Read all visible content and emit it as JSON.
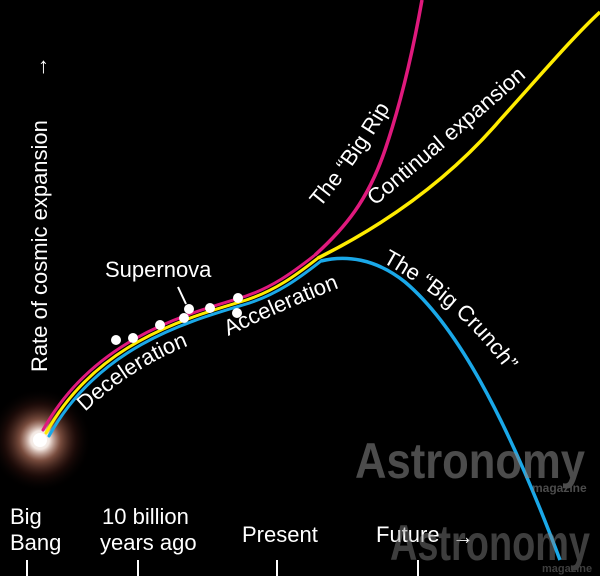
{
  "axis": {
    "y_label": "Rate of cosmic expansion",
    "y_arrow": "→",
    "x_ticks": [
      {
        "line1": "Big",
        "line2": "Bang"
      },
      {
        "line1": "10 billion",
        "line2": "years ago"
      },
      {
        "line1": "Present",
        "line2": ""
      },
      {
        "line1": "Future",
        "line2": ""
      }
    ],
    "future_arrow": "→"
  },
  "labels": {
    "big_rip": "The “Big Rip”",
    "continual": "Continual expansion",
    "big_crunch": "The “Big Crunch”",
    "supernova": "Supernova",
    "deceleration": "Deceleration",
    "acceleration": "Acceleration"
  },
  "watermark": {
    "brand": "Astronomy",
    "sub": "magazine"
  },
  "colors": {
    "big_rip": "#e0197d",
    "continual": "#ffec00",
    "big_crunch": "#1aa8e8",
    "background": "#000000"
  }
}
